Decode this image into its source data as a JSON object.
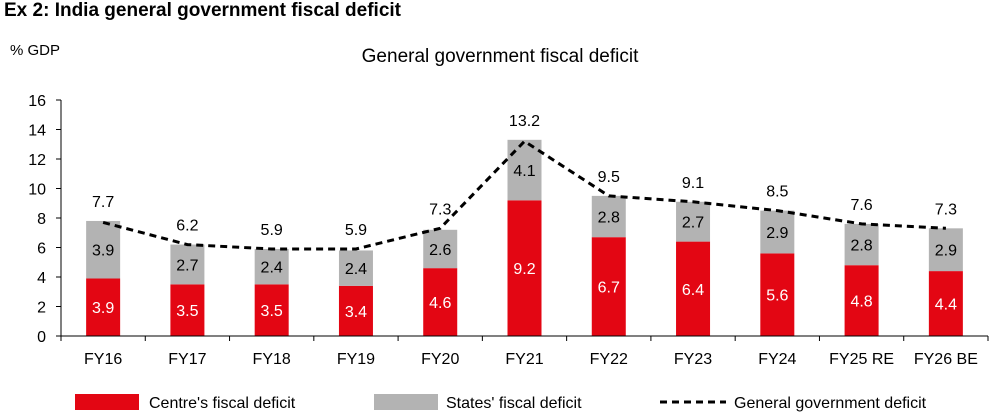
{
  "exhibit_title": "Ex 2: India general government fiscal deficit",
  "chart_data": {
    "type": "bar",
    "stacked": true,
    "title": "General government fiscal deficit",
    "ylabel": "% GDP",
    "ylim": [
      0,
      16
    ],
    "yticks": [
      0,
      2,
      4,
      6,
      8,
      10,
      12,
      14,
      16
    ],
    "grid": false,
    "legend_position": "bottom",
    "categories": [
      "FY16",
      "FY17",
      "FY18",
      "FY19",
      "FY20",
      "FY21",
      "FY22",
      "FY23",
      "FY24",
      "FY25 RE",
      "FY26 BE"
    ],
    "series": [
      {
        "name": "Centre's fiscal deficit",
        "kind": "bar",
        "color": "#e30613",
        "values": [
          3.9,
          3.5,
          3.5,
          3.4,
          4.6,
          9.2,
          6.7,
          6.4,
          5.6,
          4.8,
          4.4
        ]
      },
      {
        "name": "States' fiscal deficit",
        "kind": "bar",
        "color": "#b3b3b3",
        "values": [
          3.9,
          2.7,
          2.4,
          2.4,
          2.6,
          4.1,
          2.8,
          2.7,
          2.9,
          2.8,
          2.9
        ]
      },
      {
        "name": "General government deficit",
        "kind": "line",
        "color": "#000000",
        "dashed": true,
        "values": [
          7.7,
          6.2,
          5.9,
          5.9,
          7.3,
          13.2,
          9.5,
          9.1,
          8.5,
          7.6,
          7.3
        ]
      }
    ]
  }
}
